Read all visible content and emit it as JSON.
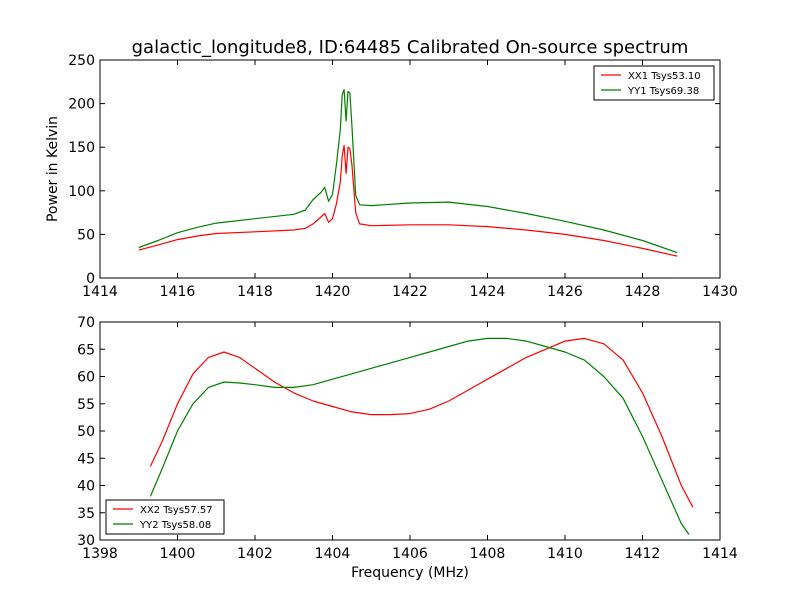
{
  "chart_data": [
    {
      "type": "line",
      "title": "galactic_longitude8, ID:64485 Calibrated On-source spectrum",
      "xlabel": "",
      "ylabel": "Power in Kelvin",
      "xlim": [
        1414,
        1430
      ],
      "ylim": [
        0,
        250
      ],
      "xticks": [
        "1414",
        "1416",
        "1418",
        "1420",
        "1422",
        "1424",
        "1426",
        "1428",
        "1430"
      ],
      "yticks": [
        "0",
        "50",
        "100",
        "150",
        "200",
        "250"
      ],
      "grid": false,
      "legend_position": "top-right",
      "series": [
        {
          "name": "XX1 Tsys53.10",
          "color": "#ff0000",
          "x": [
            1415.0,
            1415.5,
            1416.0,
            1416.5,
            1417.0,
            1418.0,
            1419.0,
            1419.3,
            1419.5,
            1419.7,
            1419.8,
            1419.9,
            1420.0,
            1420.1,
            1420.2,
            1420.25,
            1420.3,
            1420.35,
            1420.4,
            1420.45,
            1420.5,
            1420.6,
            1420.7,
            1421.0,
            1422.0,
            1423.0,
            1424.0,
            1425.0,
            1426.0,
            1427.0,
            1428.0,
            1428.9
          ],
          "y": [
            32,
            38,
            44,
            48,
            51,
            53,
            55,
            57,
            62,
            70,
            74,
            64,
            68,
            85,
            110,
            140,
            152,
            120,
            150,
            148,
            130,
            75,
            62,
            60,
            61,
            61,
            59,
            55,
            50,
            43,
            34,
            25
          ]
        },
        {
          "name": "YY1 Tsys69.38",
          "color": "#008000",
          "x": [
            1415.0,
            1415.5,
            1416.0,
            1416.5,
            1417.0,
            1418.0,
            1419.0,
            1419.3,
            1419.5,
            1419.7,
            1419.8,
            1419.9,
            1420.0,
            1420.1,
            1420.2,
            1420.25,
            1420.3,
            1420.35,
            1420.4,
            1420.45,
            1420.5,
            1420.6,
            1420.7,
            1421.0,
            1422.0,
            1423.0,
            1424.0,
            1425.0,
            1426.0,
            1427.0,
            1428.0,
            1428.9
          ],
          "y": [
            35,
            43,
            52,
            58,
            63,
            68,
            73,
            78,
            90,
            98,
            104,
            88,
            96,
            130,
            170,
            210,
            216,
            180,
            214,
            212,
            175,
            95,
            84,
            83,
            86,
            87,
            82,
            74,
            65,
            55,
            43,
            29
          ]
        }
      ]
    },
    {
      "type": "line",
      "title": "",
      "xlabel": "Frequency (MHz)",
      "ylabel": "",
      "xlim": [
        1398,
        1414
      ],
      "ylim": [
        30,
        70
      ],
      "xticks": [
        "1398",
        "1400",
        "1402",
        "1404",
        "1406",
        "1408",
        "1410",
        "1412",
        "1414"
      ],
      "yticks": [
        "30",
        "35",
        "40",
        "45",
        "50",
        "55",
        "60",
        "65",
        "70"
      ],
      "grid": false,
      "legend_position": "bottom-left",
      "series": [
        {
          "name": "XX2 Tsys57.57",
          "color": "#ff0000",
          "x": [
            1399.3,
            1399.6,
            1400.0,
            1400.4,
            1400.8,
            1401.2,
            1401.6,
            1402.0,
            1402.5,
            1403.0,
            1403.5,
            1404.0,
            1404.5,
            1405.0,
            1405.5,
            1406.0,
            1406.5,
            1407.0,
            1407.5,
            1408.0,
            1408.5,
            1409.0,
            1409.5,
            1410.0,
            1410.5,
            1411.0,
            1411.5,
            1412.0,
            1412.5,
            1413.0,
            1413.3
          ],
          "y": [
            43.5,
            48,
            55,
            60.5,
            63.5,
            64.5,
            63.5,
            61.5,
            59,
            57,
            55.5,
            54.5,
            53.5,
            53,
            53,
            53.2,
            54,
            55.5,
            57.5,
            59.5,
            61.5,
            63.5,
            65,
            66.5,
            67,
            66,
            63,
            57,
            49,
            40,
            36
          ]
        },
        {
          "name": "YY2 Tsys58.08",
          "color": "#008000",
          "x": [
            1399.3,
            1399.6,
            1400.0,
            1400.4,
            1400.8,
            1401.2,
            1401.6,
            1402.0,
            1402.5,
            1403.0,
            1403.5,
            1404.0,
            1404.5,
            1405.0,
            1405.5,
            1406.0,
            1406.5,
            1407.0,
            1407.5,
            1408.0,
            1408.5,
            1409.0,
            1409.5,
            1410.0,
            1410.5,
            1411.0,
            1411.5,
            1412.0,
            1412.5,
            1413.0,
            1413.2
          ],
          "y": [
            38,
            43,
            50,
            55,
            58,
            59,
            58.8,
            58.5,
            58,
            58,
            58.5,
            59.5,
            60.5,
            61.5,
            62.5,
            63.5,
            64.5,
            65.5,
            66.5,
            67,
            67,
            66.5,
            65.5,
            64.5,
            63,
            60,
            56,
            49,
            41,
            33,
            31
          ]
        }
      ]
    }
  ]
}
